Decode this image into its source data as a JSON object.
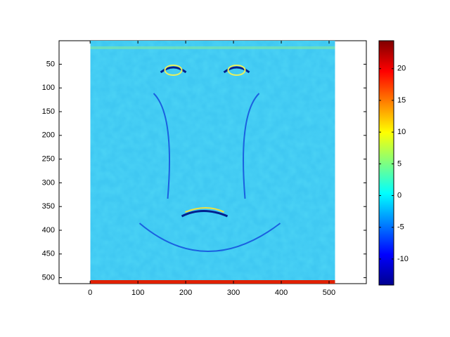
{
  "chart_data": {
    "type": "image",
    "image_extent": {
      "x": [
        0.5,
        512.5
      ],
      "y": [
        0.5,
        512.5
      ]
    },
    "xlim": [
      -65,
      578
    ],
    "ylim": [
      0.5,
      512.5
    ],
    "y_reversed": true,
    "xticks": [
      0,
      100,
      200,
      300,
      400,
      500
    ],
    "yticks": [
      50,
      100,
      150,
      200,
      250,
      300,
      350,
      400,
      450,
      500
    ],
    "colorbar": {
      "clim": [
        -14.1,
        24.4
      ],
      "ticks": [
        -10,
        -5,
        0,
        5,
        10,
        15,
        20
      ],
      "colormap": "jet"
    }
  }
}
